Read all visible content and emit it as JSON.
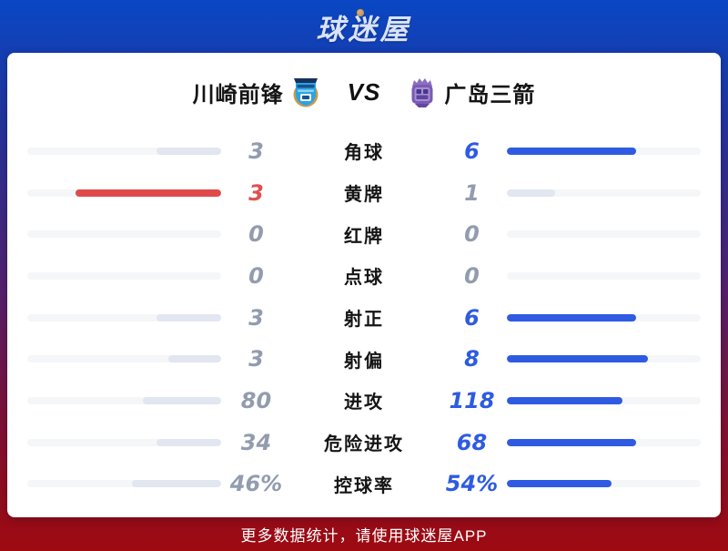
{
  "logo": {
    "text": "球迷屋"
  },
  "header": {
    "home_team": "川崎前锋",
    "away_team": "广岛三箭",
    "vs": "VS",
    "home_badge": "kawasaki-frontale-crest",
    "away_badge": "sanfrecce-hiroshima-crest"
  },
  "stats": [
    {
      "label": "角球",
      "home": "3",
      "away": "6",
      "home_pct": 33.3,
      "away_pct": 66.7,
      "home_fill": "gray",
      "away_fill": "blue",
      "home_color": "gray",
      "away_color": "blue"
    },
    {
      "label": "黄牌",
      "home": "3",
      "away": "1",
      "home_pct": 75,
      "away_pct": 25,
      "home_fill": "red",
      "away_fill": "gray",
      "home_color": "red",
      "away_color": "gray"
    },
    {
      "label": "红牌",
      "home": "0",
      "away": "0",
      "home_pct": 0,
      "away_pct": 0,
      "home_fill": "none",
      "away_fill": "none",
      "home_color": "gray",
      "away_color": "gray"
    },
    {
      "label": "点球",
      "home": "0",
      "away": "0",
      "home_pct": 0,
      "away_pct": 0,
      "home_fill": "none",
      "away_fill": "none",
      "home_color": "gray",
      "away_color": "gray"
    },
    {
      "label": "射正",
      "home": "3",
      "away": "6",
      "home_pct": 33.3,
      "away_pct": 66.7,
      "home_fill": "gray",
      "away_fill": "blue",
      "home_color": "gray",
      "away_color": "blue"
    },
    {
      "label": "射偏",
      "home": "3",
      "away": "8",
      "home_pct": 27.3,
      "away_pct": 72.7,
      "home_fill": "gray",
      "away_fill": "blue",
      "home_color": "gray",
      "away_color": "blue"
    },
    {
      "label": "进攻",
      "home": "80",
      "away": "118",
      "home_pct": 40.4,
      "away_pct": 59.6,
      "home_fill": "gray",
      "away_fill": "blue",
      "home_color": "gray",
      "away_color": "blue"
    },
    {
      "label": "危险进攻",
      "home": "34",
      "away": "68",
      "home_pct": 33.3,
      "away_pct": 66.7,
      "home_fill": "gray",
      "away_fill": "blue",
      "home_color": "gray",
      "away_color": "blue"
    },
    {
      "label": "控球率",
      "home": "46%",
      "away": "54%",
      "home_pct": 46,
      "away_pct": 54,
      "home_fill": "gray",
      "away_fill": "blue",
      "home_color": "gray",
      "away_color": "blue"
    }
  ],
  "footer": {
    "text": "更多数据统计，请使用球迷屋APP"
  },
  "colors": {
    "bg-top": "#0947c4",
    "bg-upper": "#23349c",
    "bg-mid": "#4f2272",
    "bg-lower": "#7e1136",
    "bg-bottom": "#9e0a10",
    "card": "#ffffff",
    "track": "#f5f6f8",
    "fill-gray": "#e1e6f0",
    "fill-blue": "#2e5be2",
    "fill-red": "#e04a4a",
    "num-gray": "#929cae",
    "num-blue": "#2e5be2",
    "num-red": "#e05050",
    "label": "#141414",
    "logo-text": "#d9e2f8",
    "logo-dot": "#b98a4a",
    "footer-text": "#ffffff"
  }
}
